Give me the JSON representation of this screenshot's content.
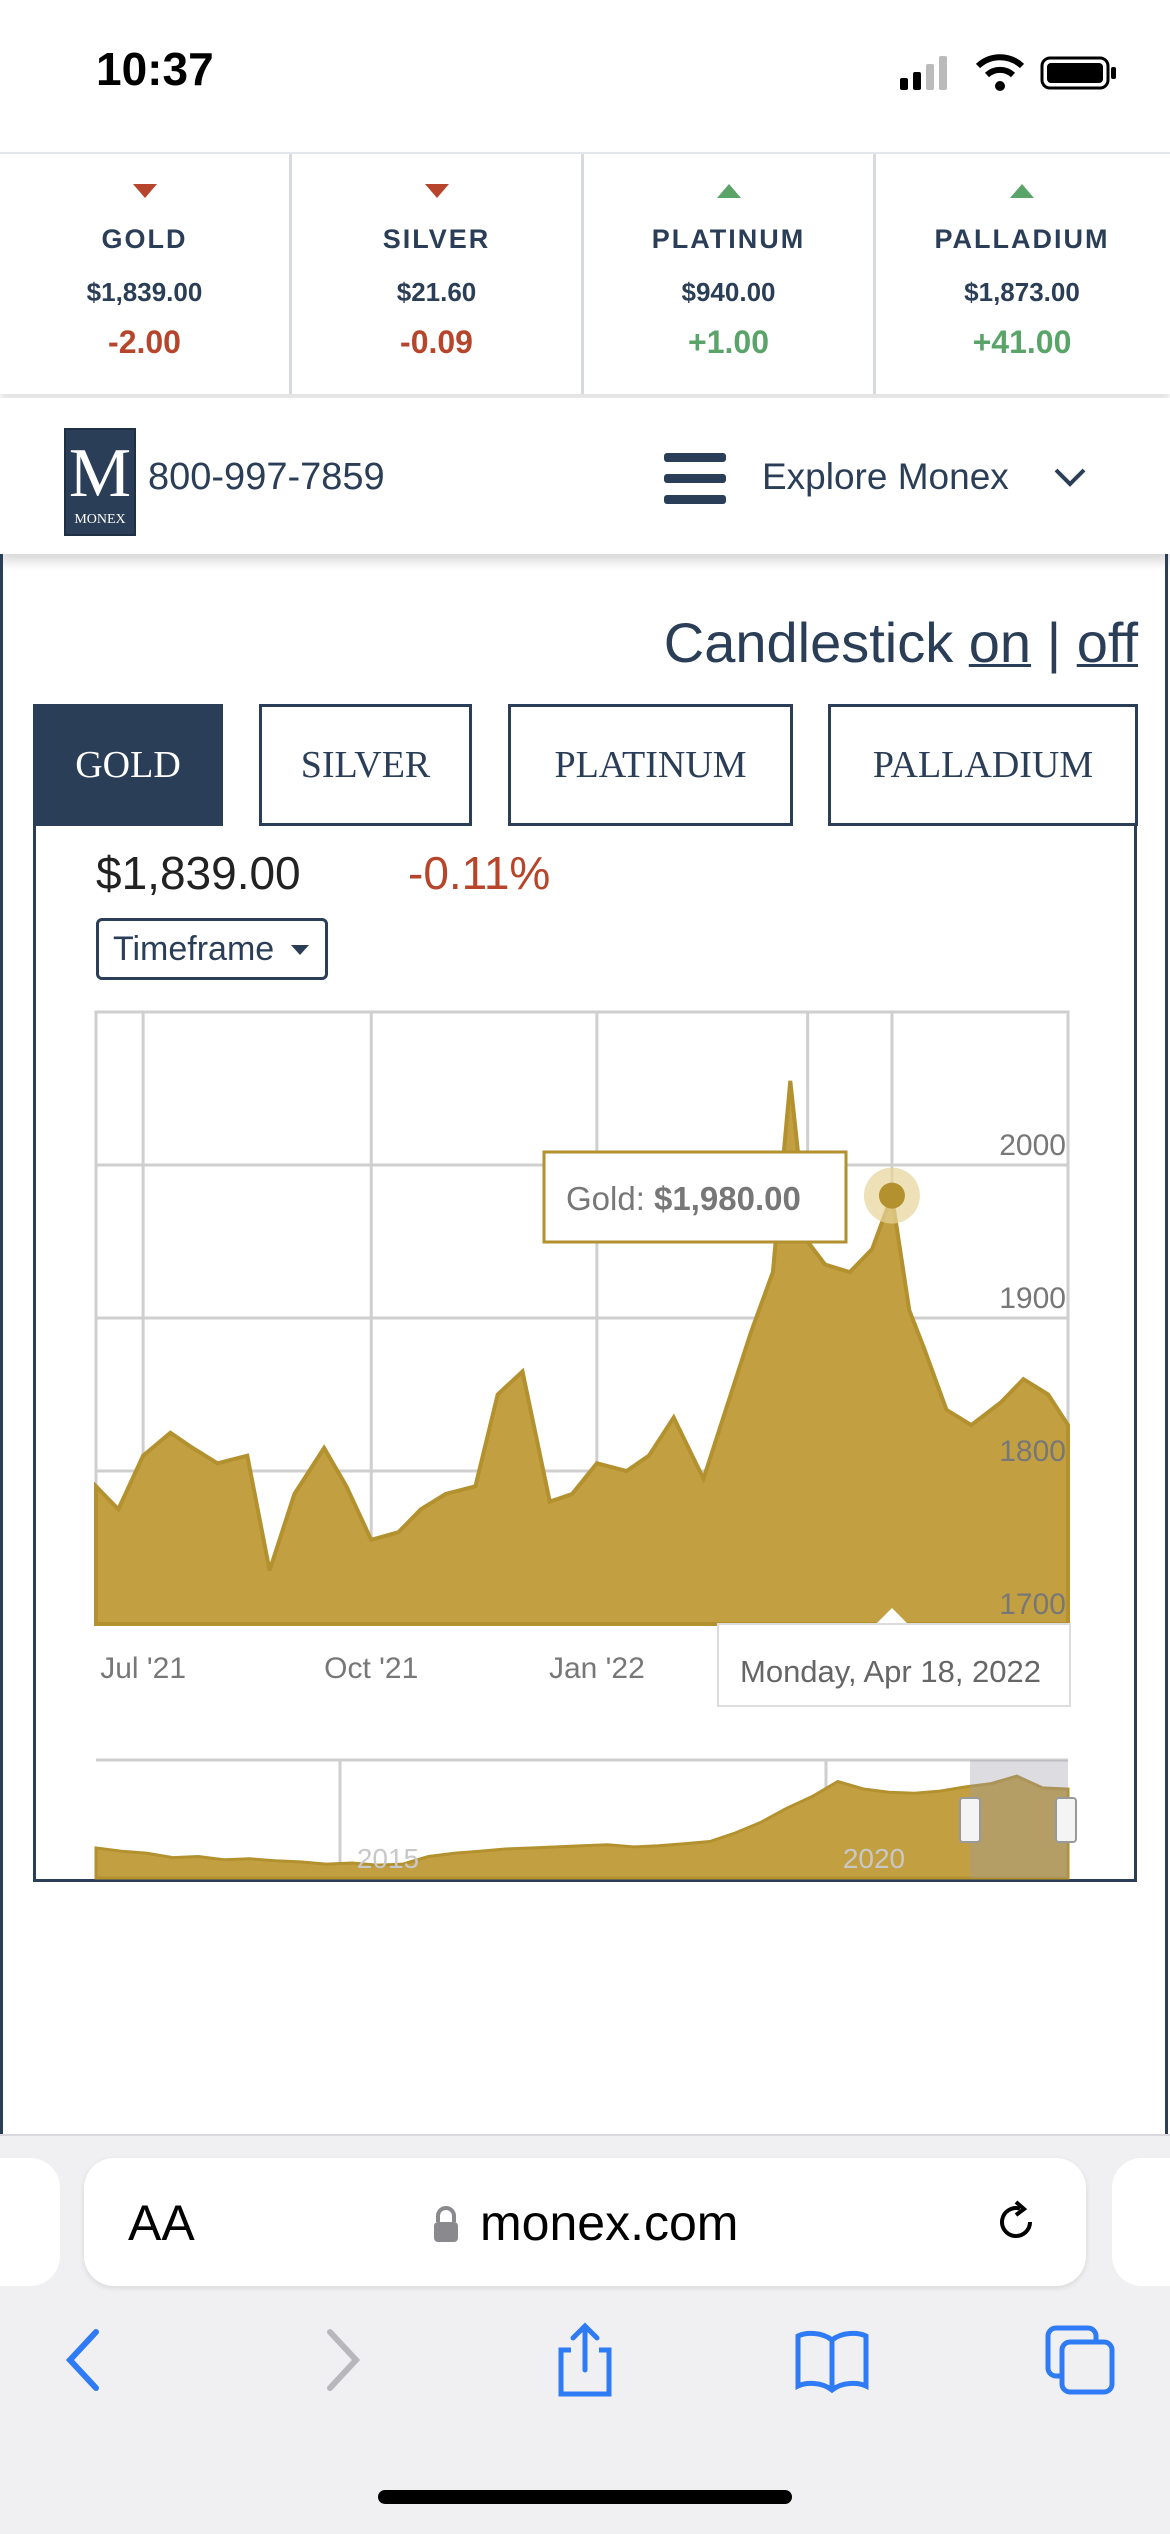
{
  "status": {
    "time": "10:37"
  },
  "ticker": [
    {
      "name": "GOLD",
      "price": "$1,839.00",
      "change": "-2.00",
      "direction": "down"
    },
    {
      "name": "SILVER",
      "price": "$21.60",
      "change": "-0.09",
      "direction": "down"
    },
    {
      "name": "PLATINUM",
      "price": "$940.00",
      "change": "+1.00",
      "direction": "up"
    },
    {
      "name": "PALLADIUM",
      "price": "$1,873.00",
      "change": "+41.00",
      "direction": "up"
    }
  ],
  "header": {
    "logo_letter": "M",
    "logo_word": "MONEX",
    "phone": "800-997-7859",
    "explore_label": "Explore Monex"
  },
  "candlestick": {
    "label": "Candlestick",
    "on": "on",
    "separator": "|",
    "off": "off"
  },
  "metal_tabs": [
    {
      "label": "GOLD",
      "active": true
    },
    {
      "label": "SILVER",
      "active": false
    },
    {
      "label": "PLATINUM",
      "active": false
    },
    {
      "label": "PALLADIUM",
      "active": false
    }
  ],
  "quote": {
    "price": "$1,839.00",
    "percent": "-0.11%",
    "timeframe_label": "Timeframe"
  },
  "colors": {
    "navy": "#2b3e57",
    "gold_fill": "#c2a042",
    "negative": "#b6452c",
    "positive": "#5aa469"
  },
  "chart_data": {
    "type": "area",
    "series": [
      {
        "name": "Gold",
        "x": [
          "2021-06-01",
          "2021-06-10",
          "2021-06-20",
          "2021-07-01",
          "2021-07-10",
          "2021-07-20",
          "2021-08-01",
          "2021-08-10",
          "2021-08-20",
          "2021-09-01",
          "2021-09-10",
          "2021-09-20",
          "2021-10-01",
          "2021-10-10",
          "2021-10-20",
          "2021-11-01",
          "2021-11-10",
          "2021-11-20",
          "2021-12-01",
          "2021-12-10",
          "2021-12-20",
          "2022-01-01",
          "2022-01-10",
          "2022-01-20",
          "2022-02-01",
          "2022-02-10",
          "2022-02-20",
          "2022-03-01",
          "2022-03-08",
          "2022-03-15",
          "2022-03-22",
          "2022-04-01",
          "2022-04-10",
          "2022-04-18",
          "2022-04-25",
          "2022-05-01",
          "2022-05-10",
          "2022-05-20",
          "2022-06-01",
          "2022-06-10",
          "2022-06-20",
          "2022-06-28"
        ],
        "values": [
          1790,
          1775,
          1810,
          1825,
          1815,
          1805,
          1810,
          1735,
          1785,
          1815,
          1790,
          1755,
          1760,
          1775,
          1785,
          1790,
          1850,
          1865,
          1780,
          1785,
          1805,
          1800,
          1810,
          1835,
          1795,
          1840,
          1890,
          1930,
          2055,
          1950,
          1935,
          1930,
          1945,
          1980,
          1905,
          1880,
          1840,
          1830,
          1845,
          1860,
          1850,
          1830
        ]
      }
    ],
    "tooltip": {
      "series": "Gold",
      "value": "$1,980.00",
      "date": "Monday, Apr 18, 2022",
      "x": "2022-04-18"
    },
    "x_ticks": [
      {
        "label": "Jul '21",
        "x": "2021-06-20"
      },
      {
        "label": "Oct '21",
        "x": "2021-09-20"
      },
      {
        "label": "Jan '22",
        "x": "2021-12-20"
      }
    ],
    "y_ticks": [
      1700,
      1800,
      1900,
      2000
    ],
    "ylim": [
      1700,
      2100
    ],
    "grid": true,
    "navigator": {
      "labels": [
        "2015",
        "2020"
      ],
      "values": [
        1280,
        1250,
        1230,
        1190,
        1200,
        1170,
        1180,
        1160,
        1150,
        1130,
        1140,
        1120,
        1130,
        1200,
        1230,
        1250,
        1270,
        1280,
        1290,
        1300,
        1310,
        1290,
        1300,
        1320,
        1340,
        1420,
        1520,
        1650,
        1760,
        1900,
        1830,
        1800,
        1790,
        1810,
        1850,
        1880,
        1950,
        1840,
        1830
      ],
      "ylim": [
        1000,
        2100
      ]
    }
  },
  "browser": {
    "aa": "AA",
    "url": "monex.com"
  }
}
